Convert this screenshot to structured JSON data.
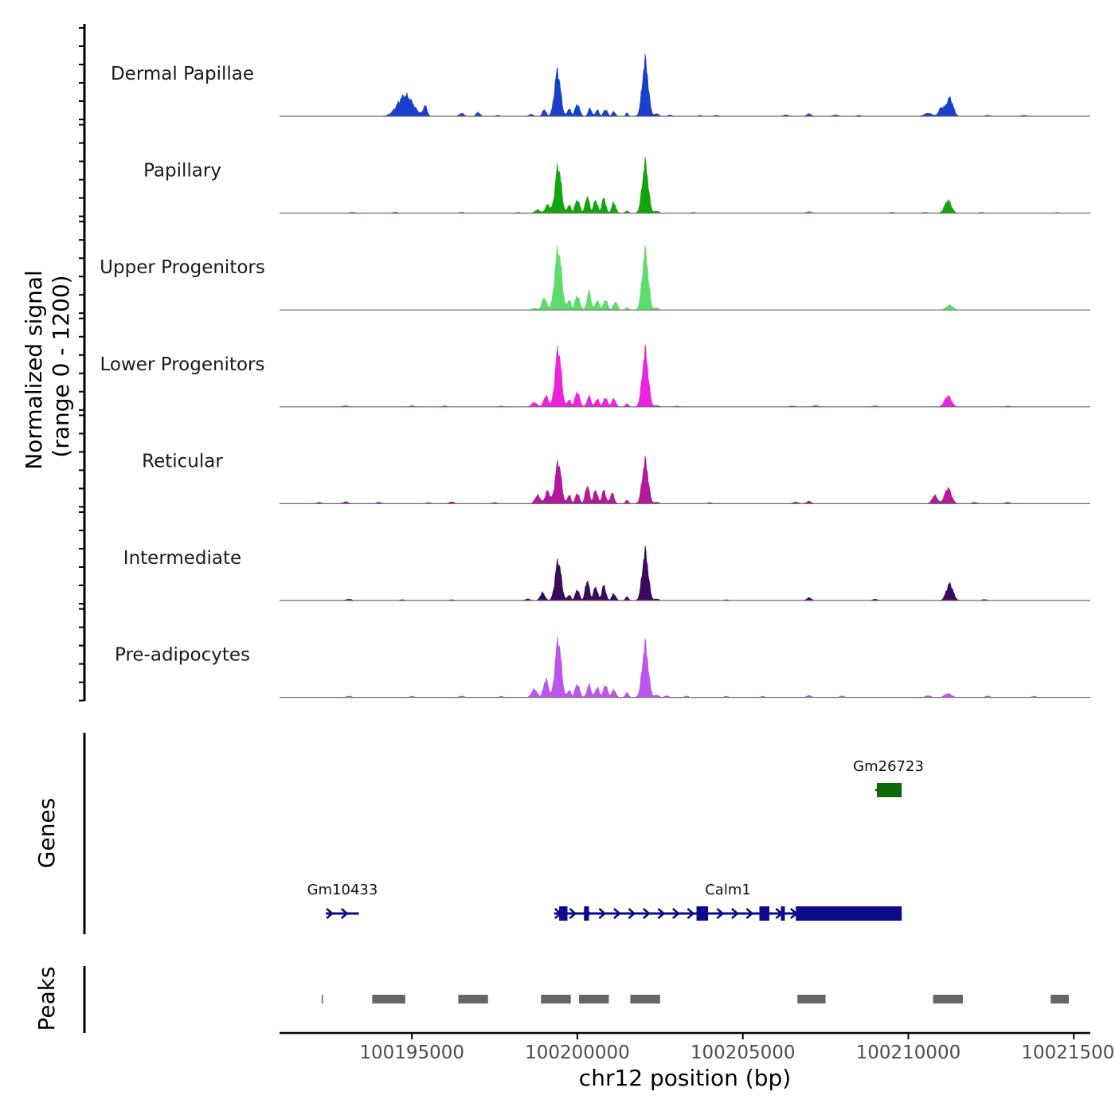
{
  "chart_data": {
    "type": "area",
    "title": "",
    "region": {
      "chromosome": "chr12",
      "start": 100191000,
      "end": 100215500
    },
    "ylabel": "Normalized signal\n(range 0 - 1200)",
    "ylabel_lines": [
      "Normalized signal",
      "(range 0 - 1200)"
    ],
    "ylim": [
      0,
      1200
    ],
    "xlabel": "chr12 position (bp)",
    "xticks": [
      100195000,
      100200000,
      100205000,
      100210000,
      100215000
    ],
    "xtick_labels": [
      "100195000",
      "100200000",
      "100205000",
      "100210000",
      "100215000"
    ],
    "series": [
      {
        "name": "Dermal Papillae",
        "color": "#1a3fcc",
        "peaks": [
          [
            100194800,
            380,
            230
          ],
          [
            100195400,
            180,
            60
          ],
          [
            100196500,
            55,
            70
          ],
          [
            100197000,
            70,
            60
          ],
          [
            100197600,
            22,
            50
          ],
          [
            100198600,
            38,
            60
          ],
          [
            100199000,
            125,
            55
          ],
          [
            100199400,
            820,
            90
          ],
          [
            100199750,
            140,
            50
          ],
          [
            100200000,
            220,
            70
          ],
          [
            100200380,
            140,
            55
          ],
          [
            100200600,
            120,
            50
          ],
          [
            100200850,
            125,
            60
          ],
          [
            100201100,
            85,
            50
          ],
          [
            100201500,
            60,
            40
          ],
          [
            100202050,
            1000,
            90
          ],
          [
            100202400,
            50,
            60
          ],
          [
            100202800,
            25,
            60
          ],
          [
            100203700,
            20,
            50
          ],
          [
            100204200,
            20,
            60
          ],
          [
            100206300,
            25,
            80
          ],
          [
            100207000,
            45,
            70
          ],
          [
            100207800,
            25,
            80
          ],
          [
            100208500,
            20,
            60
          ],
          [
            100210600,
            55,
            120
          ],
          [
            100211000,
            150,
            80
          ],
          [
            100211250,
            330,
            100
          ],
          [
            100212400,
            18,
            80
          ],
          [
            100213500,
            18,
            80
          ]
        ]
      },
      {
        "name": "Papillary",
        "color": "#14a50e",
        "peaks": [
          [
            100193200,
            18,
            80
          ],
          [
            100194500,
            20,
            70
          ],
          [
            100196500,
            18,
            60
          ],
          [
            100198200,
            15,
            60
          ],
          [
            100198800,
            60,
            80
          ],
          [
            100199100,
            150,
            70
          ],
          [
            100199420,
            850,
            90
          ],
          [
            100199750,
            150,
            50
          ],
          [
            100200000,
            240,
            70
          ],
          [
            100200300,
            310,
            60
          ],
          [
            100200550,
            240,
            60
          ],
          [
            100200800,
            270,
            60
          ],
          [
            100201100,
            190,
            60
          ],
          [
            100201500,
            40,
            50
          ],
          [
            100202050,
            900,
            90
          ],
          [
            100202400,
            40,
            60
          ],
          [
            100203500,
            15,
            60
          ],
          [
            100207000,
            25,
            80
          ],
          [
            100209500,
            15,
            70
          ],
          [
            100210500,
            15,
            80
          ],
          [
            100211200,
            230,
            100
          ],
          [
            100212200,
            15,
            70
          ],
          [
            100214500,
            12,
            70
          ]
        ]
      },
      {
        "name": "Upper Progenitors",
        "color": "#5fdc6e",
        "peaks": [
          [
            100198700,
            30,
            80
          ],
          [
            100199000,
            220,
            70
          ],
          [
            100199420,
            1100,
            100
          ],
          [
            100199750,
            180,
            50
          ],
          [
            100200000,
            260,
            70
          ],
          [
            100200350,
            330,
            60
          ],
          [
            100200600,
            170,
            60
          ],
          [
            100200850,
            190,
            60
          ],
          [
            100201150,
            150,
            60
          ],
          [
            100201500,
            45,
            50
          ],
          [
            100202050,
            1050,
            90
          ],
          [
            100202400,
            40,
            60
          ],
          [
            100211250,
            90,
            100
          ]
        ]
      },
      {
        "name": "Lower Progenitors",
        "color": "#ee22dd",
        "peaks": [
          [
            100193000,
            20,
            80
          ],
          [
            100195000,
            20,
            70
          ],
          [
            100196000,
            18,
            60
          ],
          [
            100197700,
            15,
            60
          ],
          [
            100198700,
            80,
            80
          ],
          [
            100199050,
            200,
            70
          ],
          [
            100199420,
            1050,
            90
          ],
          [
            100199750,
            130,
            50
          ],
          [
            100200000,
            270,
            70
          ],
          [
            100200350,
            190,
            60
          ],
          [
            100200600,
            140,
            60
          ],
          [
            100200850,
            170,
            60
          ],
          [
            100201100,
            150,
            60
          ],
          [
            100201500,
            55,
            50
          ],
          [
            100202050,
            1000,
            90
          ],
          [
            100202400,
            25,
            60
          ],
          [
            100203000,
            15,
            60
          ],
          [
            100206500,
            18,
            70
          ],
          [
            100207200,
            25,
            80
          ],
          [
            100209000,
            18,
            70
          ],
          [
            100211200,
            200,
            100
          ],
          [
            100213000,
            15,
            60
          ]
        ]
      },
      {
        "name": "Reticular",
        "color": "#b2199b",
        "peaks": [
          [
            100192200,
            25,
            60
          ],
          [
            100193000,
            35,
            80
          ],
          [
            100194000,
            25,
            70
          ],
          [
            100195500,
            20,
            60
          ],
          [
            100196200,
            35,
            70
          ],
          [
            100197500,
            20,
            70
          ],
          [
            100198800,
            150,
            80
          ],
          [
            100199100,
            230,
            70
          ],
          [
            100199420,
            760,
            90
          ],
          [
            100199750,
            160,
            50
          ],
          [
            100200000,
            190,
            60
          ],
          [
            100200300,
            330,
            60
          ],
          [
            100200550,
            250,
            60
          ],
          [
            100200800,
            240,
            60
          ],
          [
            100201050,
            190,
            60
          ],
          [
            100201500,
            60,
            50
          ],
          [
            100202050,
            770,
            90
          ],
          [
            100202400,
            30,
            60
          ],
          [
            100204000,
            20,
            60
          ],
          [
            100206600,
            30,
            80
          ],
          [
            100207000,
            45,
            70
          ],
          [
            100210800,
            150,
            80
          ],
          [
            100211200,
            280,
            100
          ],
          [
            100212000,
            25,
            70
          ],
          [
            100213000,
            25,
            70
          ]
        ]
      },
      {
        "name": "Intermediate",
        "color": "#3a0a5c",
        "peaks": [
          [
            100193100,
            25,
            80
          ],
          [
            100194700,
            15,
            70
          ],
          [
            100196200,
            15,
            60
          ],
          [
            100198500,
            30,
            70
          ],
          [
            100198950,
            140,
            70
          ],
          [
            100199420,
            720,
            90
          ],
          [
            100199750,
            100,
            50
          ],
          [
            100200000,
            200,
            60
          ],
          [
            100200300,
            370,
            60
          ],
          [
            100200550,
            250,
            60
          ],
          [
            100200800,
            270,
            60
          ],
          [
            100201100,
            120,
            60
          ],
          [
            100201500,
            65,
            50
          ],
          [
            100202050,
            880,
            90
          ],
          [
            100202400,
            30,
            60
          ],
          [
            100204500,
            15,
            60
          ],
          [
            100207000,
            50,
            70
          ],
          [
            100209000,
            25,
            70
          ],
          [
            100211250,
            300,
            100
          ],
          [
            100212300,
            20,
            70
          ]
        ]
      },
      {
        "name": "Pre-adipocytes",
        "color": "#bb55ee",
        "peaks": [
          [
            100193100,
            25,
            70
          ],
          [
            100195000,
            20,
            70
          ],
          [
            100196500,
            25,
            70
          ],
          [
            100197700,
            20,
            60
          ],
          [
            100198700,
            150,
            80
          ],
          [
            100199050,
            330,
            70
          ],
          [
            100199420,
            1050,
            90
          ],
          [
            100199750,
            130,
            50
          ],
          [
            100200000,
            240,
            70
          ],
          [
            100200350,
            230,
            60
          ],
          [
            100200600,
            180,
            60
          ],
          [
            100200850,
            230,
            60
          ],
          [
            100201100,
            140,
            60
          ],
          [
            100201500,
            85,
            50
          ],
          [
            100202050,
            950,
            90
          ],
          [
            100202400,
            45,
            60
          ],
          [
            100202700,
            30,
            60
          ],
          [
            100203300,
            25,
            60
          ],
          [
            100204500,
            20,
            60
          ],
          [
            100205600,
            20,
            60
          ],
          [
            100207000,
            35,
            70
          ],
          [
            100208000,
            25,
            70
          ],
          [
            100210600,
            30,
            80
          ],
          [
            100211200,
            70,
            100
          ],
          [
            100212400,
            25,
            70
          ],
          [
            100213800,
            20,
            70
          ]
        ]
      }
    ],
    "genes_panel": {
      "label": "Genes",
      "genes": [
        {
          "name": "Gm26723",
          "strand": "-",
          "start": 100209000,
          "end": 100209800,
          "color": "#0b6b0b",
          "row": 0,
          "exons": [
            [
              100209050,
              100209800
            ]
          ]
        },
        {
          "name": "Gm10433",
          "strand": "+",
          "start": 100192400,
          "end": 100193400,
          "color": "#0a0a8c",
          "row": 1,
          "exons": []
        },
        {
          "name": "Calm1",
          "strand": "+",
          "start": 100199300,
          "end": 100209800,
          "color": "#0a0a8c",
          "row": 1,
          "exons": [
            [
              100199450,
              100199700
            ],
            [
              100200200,
              100200350
            ],
            [
              100203600,
              100203950
            ],
            [
              100205500,
              100205800
            ],
            [
              100206150,
              100206270
            ],
            [
              100206600,
              100209800
            ]
          ]
        }
      ]
    },
    "peaks_panel": {
      "label": "Peaks",
      "color": "#666666",
      "peaks": [
        [
          100192270,
          100192310
        ],
        [
          100193800,
          100194800
        ],
        [
          100196400,
          100197300
        ],
        [
          100198900,
          100199800
        ],
        [
          100200050,
          100200950
        ],
        [
          100201600,
          100202500
        ],
        [
          100206650,
          100207500
        ],
        [
          100210750,
          100211650
        ],
        [
          100214300,
          100214850
        ]
      ]
    }
  }
}
